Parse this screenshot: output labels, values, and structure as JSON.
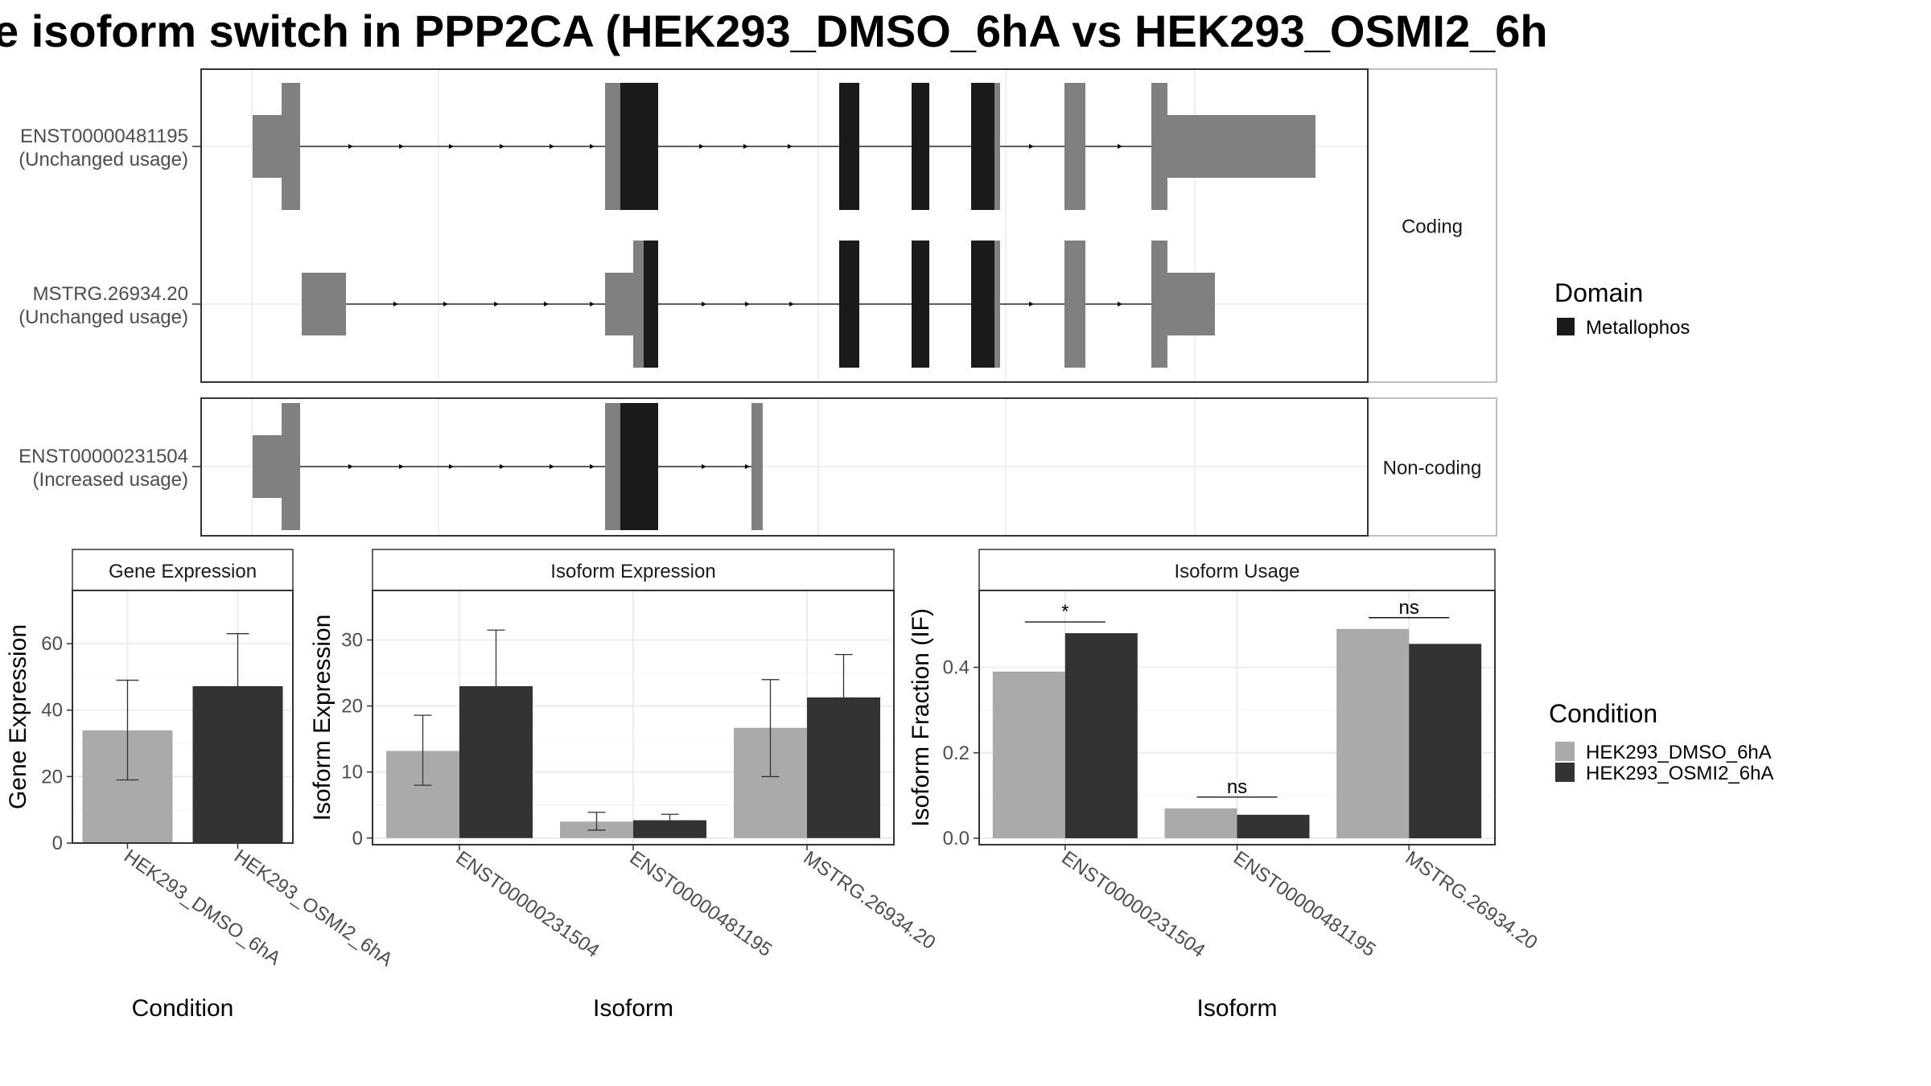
{
  "title": "e isoform switch in PPP2CA (HEK293_DMSO_6hA vs HEK293_OSMI2_6h",
  "colors": {
    "utr": "#808080",
    "domain": "#1a1a1a",
    "dmso": "#aaaaaa",
    "osmi": "#333333",
    "grid": "#ebebeb",
    "border": "#333333",
    "strip_border": "#aaaaaa"
  },
  "structure": {
    "coding_label": "Coding",
    "noncoding_label": "Non-coding",
    "isoforms": [
      {
        "id": "ENST00000481195",
        "usage": "(Unchanged usage)",
        "group": "coding"
      },
      {
        "id": "MSTRG.26934.20",
        "usage": "(Unchanged usage)",
        "group": "coding"
      },
      {
        "id": "ENST00000231504",
        "usage": "(Increased usage)",
        "group": "noncoding"
      }
    ],
    "domain_legend": {
      "title": "Domain",
      "entries": [
        "Metallophos"
      ]
    }
  },
  "chart_data": [
    {
      "type": "bar",
      "title": "Gene Expression",
      "xlabel": "Condition",
      "ylabel": "Gene Expression",
      "ylim": [
        0,
        76
      ],
      "yticks": [
        0,
        20,
        40,
        60
      ],
      "categories": [
        "HEK293_DMSO_6hA",
        "HEK293_OSMI2_6hA"
      ],
      "values": [
        33.9,
        47.2
      ],
      "error_low": [
        19.0,
        31.8
      ],
      "error_high": [
        49.0,
        63.0
      ]
    },
    {
      "type": "bar",
      "title": "Isoform Expression",
      "xlabel": "Isoform",
      "ylabel": "Isoform Expression",
      "ylim": [
        -1,
        37.5
      ],
      "yticks": [
        0,
        10,
        20,
        30
      ],
      "categories": [
        "ENST00000231504",
        "ENST00000481195",
        "MSTRG.26934.20"
      ],
      "series": [
        {
          "condition": "HEK293_DMSO_6hA",
          "values": [
            13.2,
            2.5,
            16.7
          ],
          "error_low": [
            8.0,
            1.2,
            9.3
          ],
          "error_high": [
            18.6,
            3.9,
            24.0
          ]
        },
        {
          "condition": "HEK293_OSMI2_6hA",
          "values": [
            23.0,
            2.7,
            21.3
          ],
          "error_low": [
            14.7,
            1.8,
            15.0
          ],
          "error_high": [
            31.5,
            3.6,
            27.8
          ]
        }
      ]
    },
    {
      "type": "bar",
      "title": "Isoform Usage",
      "xlabel": "Isoform",
      "ylabel": "Isoform Fraction (IF)",
      "ylim": [
        -0.015,
        0.58
      ],
      "yticks": [
        "0.0",
        "0.2",
        "0.4"
      ],
      "categories": [
        "ENST00000231504",
        "ENST00000481195",
        "MSTRG.26934.20"
      ],
      "series": [
        {
          "condition": "HEK293_DMSO_6hA",
          "values": [
            0.39,
            0.07,
            0.49
          ]
        },
        {
          "condition": "HEK293_OSMI2_6hA",
          "values": [
            0.48,
            0.055,
            0.455
          ]
        }
      ],
      "significance": [
        "*",
        "ns",
        "ns"
      ]
    }
  ],
  "condition_legend": {
    "title": "Condition",
    "entries": [
      "HEK293_DMSO_6hA",
      "HEK293_OSMI2_6hA"
    ]
  }
}
